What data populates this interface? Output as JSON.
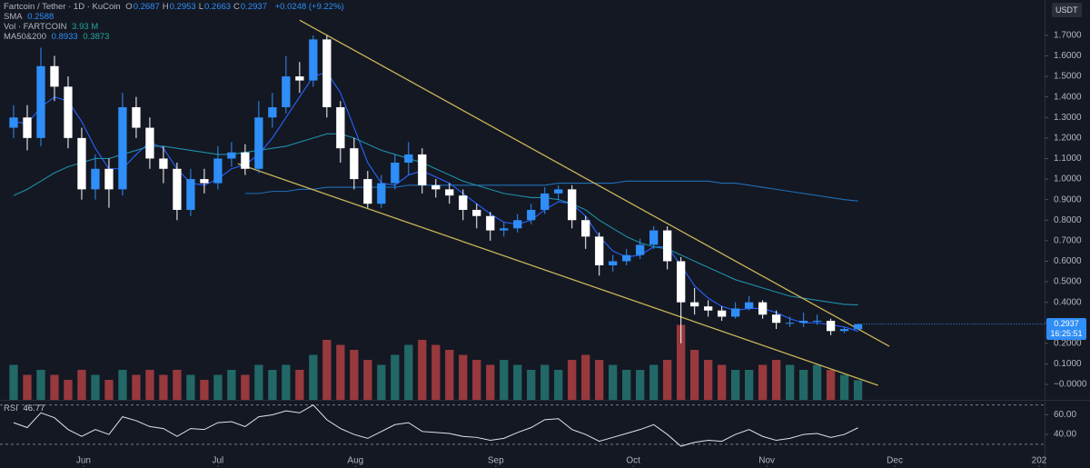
{
  "chart_data": {
    "type": "candlestick",
    "title": "Fartcoin / Tether · 1D · KuCoin",
    "ohlc_labels": [
      {
        "key": "O",
        "text": "0.2687"
      },
      {
        "key": "H",
        "text": "0.2953"
      },
      {
        "key": "L",
        "text": "0.2663"
      },
      {
        "key": "C",
        "text": "0.2937"
      }
    ],
    "change_label": "+0.0248 (+9.22%)",
    "currency": "USDT",
    "close_label": "0.2937",
    "countdown": "16:25:51",
    "up_color": "#2f8ef7",
    "down_color": "#ffffff",
    "categories": [
      null,
      null,
      null,
      null,
      null,
      null,
      null,
      null,
      null,
      null,
      null,
      null,
      null,
      null,
      null,
      null,
      null,
      null,
      null,
      null,
      null,
      null,
      null,
      null,
      null,
      null,
      null,
      null,
      null,
      null,
      null,
      null,
      null,
      null,
      null,
      null,
      null,
      null,
      null,
      null,
      null,
      null,
      null,
      null,
      null,
      null,
      null,
      null,
      null,
      null,
      null,
      null,
      null,
      null,
      null,
      null,
      null,
      null,
      null,
      null,
      null,
      null,
      null
    ],
    "open": [
      1.25,
      1.3,
      1.2,
      1.55,
      1.45,
      1.2,
      0.95,
      1.05,
      0.95,
      1.35,
      1.25,
      1.1,
      1.05,
      0.85,
      1.0,
      0.98,
      1.1,
      1.13,
      1.05,
      1.3,
      1.35,
      1.5,
      1.48,
      1.68,
      1.35,
      1.15,
      1.0,
      0.88,
      0.98,
      1.08,
      1.12,
      0.97,
      0.95,
      0.92,
      0.85,
      0.82,
      0.75,
      0.76,
      0.8,
      0.85,
      0.93,
      0.95,
      0.8,
      0.72,
      0.58,
      0.6,
      0.63,
      0.68,
      0.75,
      0.6,
      0.4,
      0.38,
      0.36,
      0.33,
      0.37,
      0.4,
      0.34,
      0.3,
      0.3,
      0.31,
      0.31,
      0.26,
      0.2687
    ],
    "high": [
      1.36,
      1.36,
      1.64,
      1.6,
      1.5,
      1.25,
      1.12,
      1.1,
      1.42,
      1.4,
      1.3,
      1.16,
      1.08,
      1.05,
      1.05,
      1.16,
      1.18,
      1.17,
      1.38,
      1.42,
      1.6,
      1.57,
      1.7,
      1.7,
      1.38,
      1.2,
      1.04,
      1.02,
      1.12,
      1.18,
      1.15,
      1.0,
      0.98,
      0.95,
      0.88,
      0.84,
      0.79,
      0.83,
      0.88,
      0.96,
      0.97,
      0.97,
      0.82,
      0.74,
      0.63,
      0.66,
      0.71,
      0.77,
      0.77,
      0.62,
      0.47,
      0.41,
      0.38,
      0.4,
      0.43,
      0.41,
      0.36,
      0.33,
      0.35,
      0.34,
      0.32,
      0.28,
      0.2953
    ],
    "low": [
      1.2,
      1.14,
      1.16,
      1.38,
      1.15,
      0.9,
      0.9,
      0.86,
      0.92,
      1.2,
      1.05,
      0.98,
      0.8,
      0.82,
      0.93,
      0.95,
      1.06,
      1.02,
      1.03,
      1.25,
      1.32,
      1.42,
      1.45,
      1.3,
      1.08,
      0.95,
      0.86,
      0.86,
      0.95,
      1.02,
      0.93,
      0.91,
      0.88,
      0.8,
      0.76,
      0.7,
      0.72,
      0.74,
      0.78,
      0.83,
      0.9,
      0.76,
      0.66,
      0.53,
      0.55,
      0.58,
      0.61,
      0.66,
      0.56,
      0.2,
      0.34,
      0.33,
      0.31,
      0.32,
      0.36,
      0.32,
      0.27,
      0.28,
      0.28,
      0.29,
      0.24,
      0.25,
      0.2663
    ],
    "close": [
      1.3,
      1.2,
      1.55,
      1.45,
      1.2,
      0.95,
      1.05,
      0.95,
      1.35,
      1.25,
      1.1,
      1.05,
      0.85,
      1.0,
      0.98,
      1.1,
      1.13,
      1.05,
      1.3,
      1.35,
      1.5,
      1.48,
      1.68,
      1.35,
      1.15,
      1.0,
      0.88,
      0.98,
      1.08,
      1.12,
      0.97,
      0.95,
      0.92,
      0.85,
      0.82,
      0.75,
      0.76,
      0.8,
      0.85,
      0.93,
      0.95,
      0.8,
      0.72,
      0.58,
      0.6,
      0.63,
      0.68,
      0.75,
      0.6,
      0.4,
      0.38,
      0.36,
      0.33,
      0.37,
      0.4,
      0.34,
      0.3,
      0.3,
      0.31,
      0.31,
      0.26,
      0.27,
      0.2937
    ],
    "xlim": [
      -1,
      75.7
    ],
    "xticks": [
      {
        "value": 5.13,
        "label": "Jun"
      },
      {
        "value": 15,
        "label": "Jul"
      },
      {
        "value": 25.1,
        "label": "Aug"
      },
      {
        "value": 35.4,
        "label": "Sep"
      },
      {
        "value": 45.5,
        "label": "Oct"
      },
      {
        "value": 55.3,
        "label": "Nov"
      },
      {
        "value": 64.7,
        "label": "Dec"
      },
      {
        "value": 75.3,
        "label": "202"
      }
    ],
    "ylim": [
      -0.075,
      1.872
    ],
    "yticks": [
      {
        "value": 1.7,
        "label": "1.7000"
      },
      {
        "value": 1.6,
        "label": "1.6000"
      },
      {
        "value": 1.5,
        "label": "1.5000"
      },
      {
        "value": 1.4,
        "label": "1.4000"
      },
      {
        "value": 1.3,
        "label": "1.3000"
      },
      {
        "value": 1.2,
        "label": "1.2000"
      },
      {
        "value": 1.1,
        "label": "1.1000"
      },
      {
        "value": 1.0,
        "label": "1.0000"
      },
      {
        "value": 0.9,
        "label": "0.9000"
      },
      {
        "value": 0.8,
        "label": "0.8000"
      },
      {
        "value": 0.7,
        "label": "0.7000"
      },
      {
        "value": 0.6,
        "label": "0.6000"
      },
      {
        "value": 0.5,
        "label": "0.5000"
      },
      {
        "value": 0.4,
        "label": "0.4000"
      },
      {
        "value": 0.3,
        "label": "0.3000"
      },
      {
        "value": 0.2,
        "label": "0.2000"
      },
      {
        "value": 0.1,
        "label": "0.1000"
      },
      {
        "value": 0,
        "label": "−0.0000"
      }
    ],
    "volume": {
      "label": "Vol · FARTCOIN",
      "value_label": "3.93 M",
      "up_color": "#23716f",
      "down_color": "#a63d40",
      "y2lim": [
        0,
        80
      ],
      "values": [
        7,
        5,
        6,
        5,
        4,
        6,
        5,
        4,
        6,
        5,
        6,
        5,
        6,
        5,
        4,
        5,
        6,
        5,
        7,
        6,
        7,
        6,
        9,
        12,
        11,
        10,
        8,
        7,
        9,
        11,
        12,
        11,
        10,
        9,
        8,
        7,
        8,
        7,
        6,
        7,
        6,
        8,
        9,
        8,
        7,
        6,
        6,
        7,
        8,
        15,
        10,
        8,
        7,
        6,
        6,
        7,
        8,
        7,
        6,
        7,
        6,
        5,
        3.93
      ]
    },
    "indicators": [
      {
        "label": "SMA",
        "value_labels": [
          "0.2588"
        ],
        "lines": [
          {
            "color": "#2962ff",
            "values": [
              1.28,
              1.27,
              1.35,
              1.4,
              1.38,
              1.28,
              1.15,
              1.05,
              1.05,
              1.12,
              1.18,
              1.15,
              1.05,
              0.98,
              0.97,
              1.0,
              1.05,
              1.07,
              1.12,
              1.2,
              1.3,
              1.4,
              1.5,
              1.52,
              1.42,
              1.25,
              1.08,
              0.98,
              0.97,
              1.02,
              1.04,
              1.01,
              0.98,
              0.93,
              0.88,
              0.83,
              0.79,
              0.78,
              0.8,
              0.85,
              0.89,
              0.88,
              0.82,
              0.72,
              0.65,
              0.62,
              0.63,
              0.67,
              0.67,
              0.58,
              0.48,
              0.42,
              0.38,
              0.36,
              0.37,
              0.37,
              0.35,
              0.32,
              0.3,
              0.3,
              0.29,
              0.28,
              0.2588
            ]
          }
        ]
      },
      {
        "label": "MA50&200",
        "value_labels": [
          "0.8933",
          "0.3873"
        ],
        "lines": [
          {
            "color": "#1e6fb8",
            "values": [
              null,
              null,
              null,
              null,
              null,
              null,
              null,
              null,
              null,
              null,
              null,
              null,
              null,
              null,
              null,
              null,
              null,
              0.93,
              0.93,
              0.94,
              0.94,
              0.95,
              0.95,
              0.96,
              0.96,
              0.96,
              0.96,
              0.96,
              0.96,
              0.97,
              0.97,
              0.97,
              0.97,
              0.97,
              0.97,
              0.97,
              0.97,
              0.97,
              0.97,
              0.97,
              0.98,
              0.98,
              0.98,
              0.98,
              0.98,
              0.99,
              0.99,
              0.99,
              0.99,
              0.99,
              0.99,
              0.99,
              0.98,
              0.98,
              0.97,
              0.96,
              0.95,
              0.94,
              0.93,
              0.92,
              0.91,
              0.9,
              0.8933
            ]
          },
          {
            "color": "#1f8fa8",
            "values": [
              0.92,
              0.95,
              0.99,
              1.03,
              1.06,
              1.08,
              1.1,
              1.1,
              1.12,
              1.14,
              1.16,
              1.16,
              1.15,
              1.14,
              1.13,
              1.12,
              1.12,
              1.13,
              1.14,
              1.15,
              1.16,
              1.18,
              1.2,
              1.22,
              1.22,
              1.2,
              1.17,
              1.14,
              1.12,
              1.1,
              1.08,
              1.05,
              1.02,
              0.99,
              0.97,
              0.95,
              0.93,
              0.92,
              0.91,
              0.91,
              0.9,
              0.88,
              0.85,
              0.8,
              0.76,
              0.72,
              0.69,
              0.67,
              0.66,
              0.63,
              0.6,
              0.57,
              0.54,
              0.51,
              0.49,
              0.47,
              0.45,
              0.43,
              0.42,
              0.41,
              0.4,
              0.39,
              0.3873
            ]
          }
        ]
      }
    ],
    "trendlines": {
      "color": "#c9b458",
      "lines": [
        {
          "x": [
            21.0,
            64.3
          ],
          "y": [
            1.774,
            0.186
          ]
        },
        {
          "x": [
            16.47,
            63.47
          ],
          "y": [
            1.075,
            -0.004
          ]
        }
      ]
    },
    "rsi": {
      "label": "RSI",
      "value_label": "46.77",
      "color": "#e0e3eb",
      "ylim": [
        8.6,
        74.3
      ],
      "yticks": [
        {
          "value": 60,
          "label": "60.00"
        },
        {
          "value": 40,
          "label": "40.00"
        }
      ],
      "bands": [
        30,
        70
      ],
      "values": [
        52,
        47,
        62,
        57,
        45,
        38,
        45,
        40,
        58,
        54,
        48,
        46,
        38,
        46,
        45,
        52,
        53,
        48,
        58,
        60,
        64,
        62,
        70,
        55,
        46,
        40,
        36,
        43,
        50,
        52,
        43,
        42,
        41,
        38,
        37,
        34,
        36,
        42,
        47,
        55,
        56,
        45,
        40,
        33,
        37,
        41,
        45,
        50,
        40,
        28,
        32,
        34,
        33,
        40,
        45,
        38,
        34,
        36,
        40,
        41,
        37,
        40,
        46.77
      ]
    }
  }
}
